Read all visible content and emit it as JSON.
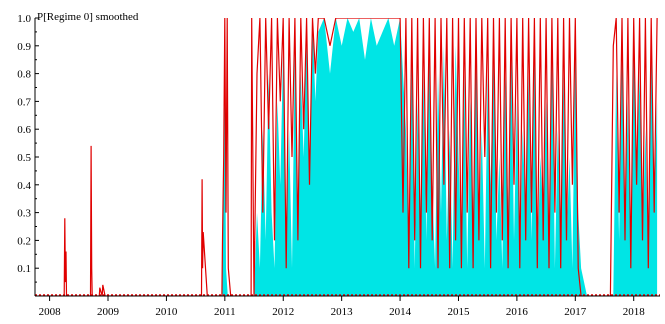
{
  "chart_data": {
    "type": "area",
    "title": "P[Regime 0] smoothed",
    "xlabel": "",
    "ylabel": "",
    "xlim": [
      2007.75,
      2018.45
    ],
    "ylim": [
      0,
      1.0
    ],
    "x_ticks": [
      "2008",
      "2009",
      "2010",
      "2011",
      "2012",
      "2013",
      "2014",
      "2015",
      "2016",
      "2017",
      "2018"
    ],
    "y_ticks": [
      "0.1",
      "0.2",
      "0.3",
      "0.4",
      "0.5",
      "0.6",
      "0.7",
      "0.8",
      "0.9",
      "1.0"
    ],
    "grid": false,
    "colors": {
      "filtered_fill": "#00e5e5",
      "smoothed_line": "#e00000",
      "axis": "#000000"
    },
    "series": [
      {
        "style": "filled",
        "color": "#00e5e5",
        "x": [
          2007.8,
          2008.0,
          2008.2,
          2008.4,
          2008.6,
          2008.8,
          2009.0,
          2009.5,
          2010.0,
          2010.5,
          2010.95,
          2011.0,
          2011.02,
          2011.05,
          2011.1,
          2011.4,
          2011.5,
          2011.55,
          2011.6,
          2011.65,
          2011.7,
          2011.75,
          2011.8,
          2011.85,
          2011.9,
          2011.95,
          2012.0,
          2012.05,
          2012.1,
          2012.15,
          2012.2,
          2012.25,
          2012.3,
          2012.35,
          2012.4,
          2012.45,
          2012.5,
          2012.55,
          2012.6,
          2012.7,
          2012.8,
          2012.9,
          2013.0,
          2013.1,
          2013.2,
          2013.3,
          2013.4,
          2013.5,
          2013.6,
          2013.7,
          2013.8,
          2013.9,
          2014.0,
          2014.1,
          2014.15,
          2014.2,
          2014.25,
          2014.3,
          2014.35,
          2014.4,
          2014.45,
          2014.5,
          2014.55,
          2014.6,
          2014.65,
          2014.7,
          2014.75,
          2014.8,
          2014.85,
          2014.9,
          2014.95,
          2015.0,
          2015.05,
          2015.1,
          2015.15,
          2015.2,
          2015.25,
          2015.3,
          2015.35,
          2015.4,
          2015.45,
          2015.5,
          2015.55,
          2015.6,
          2015.65,
          2015.7,
          2015.75,
          2015.8,
          2015.85,
          2015.9,
          2015.95,
          2016.0,
          2016.05,
          2016.1,
          2016.15,
          2016.2,
          2016.25,
          2016.3,
          2016.35,
          2016.4,
          2016.45,
          2016.5,
          2016.55,
          2016.6,
          2016.65,
          2016.7,
          2016.75,
          2016.8,
          2016.85,
          2016.9,
          2016.95,
          2017.0,
          2017.05,
          2017.1,
          2017.2,
          2017.5,
          2017.65,
          2017.7,
          2017.75,
          2017.8,
          2017.85,
          2017.9,
          2017.95,
          2018.0,
          2018.05,
          2018.1,
          2018.15,
          2018.2,
          2018.25,
          2018.3,
          2018.35,
          2018.4
        ],
        "y": [
          0,
          0,
          0,
          0,
          0,
          0,
          0,
          0,
          0,
          0,
          0,
          0.9,
          0.1,
          0,
          0,
          0,
          0,
          0.3,
          0.1,
          0.6,
          0.2,
          0.8,
          0.3,
          0.1,
          0.7,
          0.4,
          0.9,
          0.2,
          0.6,
          0.1,
          0.9,
          0.3,
          0.8,
          0.5,
          0.95,
          0.4,
          1.0,
          0.7,
          0.95,
          1.0,
          0.8,
          1.0,
          0.9,
          1.0,
          0.95,
          1.0,
          0.85,
          1.0,
          0.9,
          0.95,
          1.0,
          0.9,
          1.0,
          0.6,
          0.2,
          0.9,
          0.1,
          0.7,
          0.3,
          0.8,
          0.2,
          0.9,
          0.4,
          0.1,
          0.8,
          0.3,
          0.9,
          0.2,
          0.6,
          0.1,
          0.9,
          0.5,
          0.2,
          0.8,
          0.1,
          0.7,
          0.3,
          0.9,
          0.2,
          0.6,
          0.1,
          0.8,
          0.4,
          0.9,
          0.2,
          0.5,
          0.1,
          0.8,
          0.3,
          0.9,
          0.2,
          0.7,
          0.1,
          0.6,
          0.3,
          0.8,
          0.2,
          0.9,
          0.1,
          0.5,
          0.3,
          0.7,
          0.2,
          0.9,
          0.1,
          0.6,
          0.3,
          0.8,
          0.2,
          0.5,
          0.1,
          0.9,
          0.3,
          0.1,
          0,
          0,
          0,
          0.8,
          0.2,
          0.9,
          0.3,
          0.7,
          0.1,
          0.9,
          0.4,
          0.8,
          0.2,
          0.6,
          0.1,
          0.9,
          0.3,
          0.7
        ]
      },
      {
        "style": "line",
        "color": "#e00000",
        "x": [
          2007.8,
          2008.0,
          2008.25,
          2008.26,
          2008.27,
          2008.28,
          2008.29,
          2008.3,
          2008.6,
          2008.7,
          2008.71,
          2008.72,
          2008.73,
          2008.8,
          2008.85,
          2008.86,
          2008.9,
          2008.91,
          2008.95,
          2009.5,
          2010.0,
          2010.5,
          2010.6,
          2010.61,
          2010.62,
          2010.63,
          2010.7,
          2010.95,
          2010.96,
          2010.98,
          2011.0,
          2011.02,
          2011.04,
          2011.06,
          2011.1,
          2011.4,
          2011.45,
          2011.46,
          2011.5,
          2011.55,
          2011.6,
          2011.65,
          2011.7,
          2011.75,
          2011.8,
          2011.85,
          2011.9,
          2011.95,
          2012.0,
          2012.05,
          2012.1,
          2012.15,
          2012.2,
          2012.25,
          2012.3,
          2012.35,
          2012.4,
          2012.45,
          2012.5,
          2012.55,
          2012.6,
          2012.7,
          2012.8,
          2012.9,
          2013.0,
          2013.1,
          2013.2,
          2013.3,
          2013.4,
          2013.5,
          2013.6,
          2013.7,
          2013.8,
          2013.9,
          2014.0,
          2014.05,
          2014.1,
          2014.15,
          2014.2,
          2014.25,
          2014.3,
          2014.35,
          2014.4,
          2014.45,
          2014.5,
          2014.55,
          2014.6,
          2014.65,
          2014.7,
          2014.75,
          2014.8,
          2014.85,
          2014.9,
          2014.95,
          2015.0,
          2015.05,
          2015.1,
          2015.15,
          2015.2,
          2015.25,
          2015.3,
          2015.35,
          2015.4,
          2015.45,
          2015.5,
          2015.55,
          2015.6,
          2015.65,
          2015.7,
          2015.75,
          2015.8,
          2015.85,
          2015.9,
          2015.95,
          2016.0,
          2016.05,
          2016.1,
          2016.15,
          2016.2,
          2016.25,
          2016.3,
          2016.35,
          2016.4,
          2016.45,
          2016.5,
          2016.55,
          2016.6,
          2016.65,
          2016.7,
          2016.75,
          2016.8,
          2016.85,
          2016.9,
          2016.95,
          2017.0,
          2017.05,
          2017.1,
          2017.2,
          2017.5,
          2017.6,
          2017.65,
          2017.7,
          2017.75,
          2017.8,
          2017.85,
          2017.9,
          2017.95,
          2018.0,
          2018.05,
          2018.1,
          2018.15,
          2018.2,
          2018.25,
          2018.3,
          2018.35,
          2018.4
        ],
        "y": [
          0,
          0,
          0,
          0.28,
          0.05,
          0.16,
          0,
          0,
          0,
          0,
          0.54,
          0.1,
          0,
          0,
          0,
          0.03,
          0,
          0.04,
          0,
          0,
          0,
          0,
          0,
          0.42,
          0.1,
          0.23,
          0,
          0,
          0.2,
          0.5,
          1.0,
          0.3,
          1.0,
          0.1,
          0,
          0,
          0,
          1.0,
          0,
          0.8,
          1.0,
          0.3,
          1.0,
          0.6,
          1.0,
          0.2,
          1.0,
          0.7,
          1.0,
          0.1,
          1.0,
          0.5,
          1.0,
          0.2,
          1.0,
          0.6,
          1.0,
          0.4,
          1.0,
          0.8,
          1.0,
          1.0,
          0.9,
          1.0,
          1.0,
          1.0,
          1.0,
          1.0,
          1.0,
          1.0,
          1.0,
          1.0,
          1.0,
          1.0,
          1.0,
          0.3,
          1.0,
          0.1,
          1.0,
          0.2,
          1.0,
          0.1,
          1.0,
          0.3,
          1.0,
          0.2,
          1.0,
          0.1,
          1.0,
          0.4,
          1.0,
          0.1,
          1.0,
          0.2,
          1.0,
          0.1,
          1.0,
          0.3,
          1.0,
          0.1,
          1.0,
          0.2,
          1.0,
          0.5,
          1.0,
          0.1,
          1.0,
          0.3,
          1.0,
          0.2,
          1.0,
          0.1,
          1.0,
          0.4,
          1.0,
          0.1,
          1.0,
          0.2,
          1.0,
          0.3,
          1.0,
          0.1,
          1.0,
          0.2,
          1.0,
          0.1,
          1.0,
          0.3,
          1.0,
          0.1,
          1.0,
          0.2,
          1.0,
          0.4,
          1.0,
          0.1,
          0,
          0,
          0,
          0,
          0.9,
          1.0,
          0.3,
          1.0,
          0.2,
          1.0,
          0.1,
          1.0,
          0.4,
          1.0,
          0.2,
          1.0,
          0.1,
          1.0,
          0.3,
          1.0
        ]
      }
    ]
  }
}
